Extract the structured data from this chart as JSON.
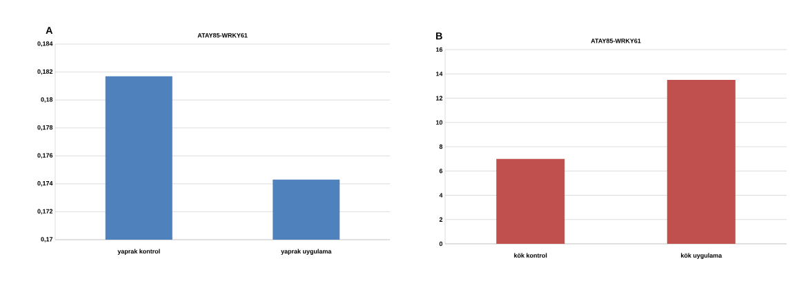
{
  "chart_data": [
    {
      "type": "bar",
      "title": "ATAY85-WRKY61",
      "annotations": [
        "A"
      ],
      "categories": [
        "yaprak kontrol",
        "yaprak uygulama"
      ],
      "values": [
        0.1817,
        0.1743
      ],
      "color": "#4f81bd",
      "ylim": [
        0.17,
        0.184
      ],
      "yticks": [
        {
          "value": 0.17,
          "label": "0,17"
        },
        {
          "value": 0.172,
          "label": "0,172"
        },
        {
          "value": 0.174,
          "label": "0,174"
        },
        {
          "value": 0.176,
          "label": "0,176"
        },
        {
          "value": 0.178,
          "label": "0,178"
        },
        {
          "value": 0.18,
          "label": "0,18"
        },
        {
          "value": 0.182,
          "label": "0,182"
        },
        {
          "value": 0.184,
          "label": "0,184"
        }
      ],
      "grid": "y"
    },
    {
      "type": "bar",
      "title": "ATAY85-WRKY61",
      "annotations": [
        "B"
      ],
      "categories": [
        "kök kontrol",
        "kök uygulama"
      ],
      "values": [
        7.0,
        13.5
      ],
      "color": "#c0504d",
      "ylim": [
        0,
        16
      ],
      "yticks": [
        0,
        2,
        4,
        6,
        8,
        10,
        12,
        14,
        16
      ],
      "grid": "y"
    }
  ]
}
